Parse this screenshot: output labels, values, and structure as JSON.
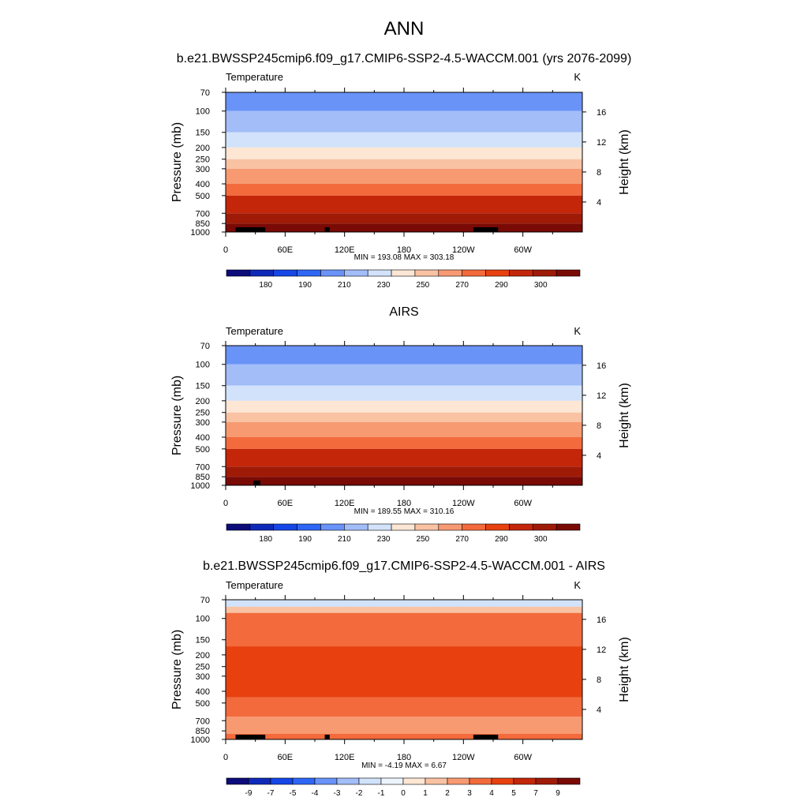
{
  "title": "ANN",
  "chart_data": [
    {
      "type": "heatmap",
      "title": "b.e21.BWSSP245cmip6.f09_g17.CMIP6-SSP2-4.5-WACCM.001 (yrs 2076-2099)",
      "variable": "Temperature",
      "units": "K",
      "ylabel": "Pressure (mb)",
      "y2label": "Height (km)",
      "xlabel": "",
      "pressure_ticks": [
        "70",
        "100",
        "150",
        "200",
        "250",
        "300",
        "400",
        "500",
        "700",
        "850",
        "1000"
      ],
      "height_ticks": [
        "16",
        "12",
        "8",
        "4"
      ],
      "lon_ticks": [
        "0",
        "60E",
        "120E",
        "180",
        "120W",
        "60W"
      ],
      "minmax": "MIN = 193.08  MAX = 303.18",
      "colorbar_labels": [
        "180",
        "190",
        "210",
        "230",
        "250",
        "270",
        "290",
        "300"
      ],
      "colorbar_colors": [
        "#0c0c7a",
        "#0f2ab8",
        "#1546e6",
        "#2e66f5",
        "#6a93f7",
        "#a2bdf8",
        "#d1e2fa",
        "#fde6d3",
        "#f9c2a3",
        "#f79a72",
        "#f36a3c",
        "#e8410f",
        "#c4260a",
        "#a01b07",
        "#7a0a05"
      ],
      "field": [
        {
          "p_top": "70",
          "p_bottom": "100",
          "value": 195
        },
        {
          "p_top": "100",
          "p_bottom": "150",
          "value": 205
        },
        {
          "p_top": "150",
          "p_bottom": "200",
          "value": 215
        },
        {
          "p_top": "200",
          "p_bottom": "250",
          "value": 222
        },
        {
          "p_top": "250",
          "p_bottom": "300",
          "value": 230
        },
        {
          "p_top": "300",
          "p_bottom": "400",
          "value": 242
        },
        {
          "p_top": "400",
          "p_bottom": "500",
          "value": 255
        },
        {
          "p_top": "500",
          "p_bottom": "700",
          "value": 270
        },
        {
          "p_top": "700",
          "p_bottom": "850",
          "value": 285
        },
        {
          "p_top": "850",
          "p_bottom": "1000",
          "value": 297
        }
      ],
      "topography_lons": [
        [
          "10",
          "40"
        ],
        [
          "100",
          "105"
        ],
        [
          "250",
          "275"
        ]
      ]
    },
    {
      "type": "heatmap",
      "title": "AIRS",
      "variable": "Temperature",
      "units": "K",
      "ylabel": "Pressure (mb)",
      "y2label": "Height (km)",
      "xlabel": "",
      "pressure_ticks": [
        "70",
        "100",
        "150",
        "200",
        "250",
        "300",
        "400",
        "500",
        "700",
        "850",
        "1000"
      ],
      "height_ticks": [
        "16",
        "12",
        "8",
        "4"
      ],
      "lon_ticks": [
        "0",
        "60E",
        "120E",
        "180",
        "120W",
        "60W"
      ],
      "minmax": "MIN = 189.55  MAX = 310.16",
      "colorbar_labels": [
        "180",
        "190",
        "210",
        "230",
        "250",
        "270",
        "290",
        "300"
      ],
      "colorbar_colors": [
        "#0c0c7a",
        "#0f2ab8",
        "#1546e6",
        "#2e66f5",
        "#6a93f7",
        "#a2bdf8",
        "#d1e2fa",
        "#fde6d3",
        "#f9c2a3",
        "#f79a72",
        "#f36a3c",
        "#e8410f",
        "#c4260a",
        "#a01b07",
        "#7a0a05"
      ],
      "field": [
        {
          "p_top": "70",
          "p_bottom": "100",
          "value": 195
        },
        {
          "p_top": "100",
          "p_bottom": "150",
          "value": 205
        },
        {
          "p_top": "150",
          "p_bottom": "200",
          "value": 215
        },
        {
          "p_top": "200",
          "p_bottom": "250",
          "value": 222
        },
        {
          "p_top": "250",
          "p_bottom": "300",
          "value": 232
        },
        {
          "p_top": "300",
          "p_bottom": "400",
          "value": 244
        },
        {
          "p_top": "400",
          "p_bottom": "500",
          "value": 257
        },
        {
          "p_top": "500",
          "p_bottom": "700",
          "value": 272
        },
        {
          "p_top": "700",
          "p_bottom": "850",
          "value": 287
        },
        {
          "p_top": "850",
          "p_bottom": "1000",
          "value": 299
        }
      ],
      "topography_lons": [
        [
          "28",
          "35"
        ]
      ]
    },
    {
      "type": "heatmap",
      "title": "b.e21.BWSSP245cmip6.f09_g17.CMIP6-SSP2-4.5-WACCM.001 - AIRS",
      "variable": "Temperature",
      "units": "K",
      "ylabel": "Pressure (mb)",
      "y2label": "Height (km)",
      "xlabel": "",
      "pressure_ticks": [
        "70",
        "100",
        "150",
        "200",
        "250",
        "300",
        "400",
        "500",
        "700",
        "850",
        "1000"
      ],
      "height_ticks": [
        "16",
        "12",
        "8",
        "4"
      ],
      "lon_ticks": [
        "0",
        "60E",
        "120E",
        "180",
        "120W",
        "60W"
      ],
      "minmax": "MIN =  -4.19  MAX =   6.67",
      "colorbar_labels": [
        "-9",
        "-7",
        "-5",
        "-4",
        "-3",
        "-2",
        "-1",
        "0",
        "1",
        "2",
        "3",
        "4",
        "5",
        "7",
        "9"
      ],
      "colorbar_colors": [
        "#0c0c7a",
        "#0f2ab8",
        "#1546e6",
        "#2e66f5",
        "#6a93f7",
        "#a2bdf8",
        "#d1e2fa",
        "#eef4fd",
        "#fde6d3",
        "#f9c2a3",
        "#f79a72",
        "#f36a3c",
        "#e8410f",
        "#c4260a",
        "#a01b07",
        "#7a0a05"
      ],
      "field": [
        {
          "p_top": "70",
          "p_bottom": "80",
          "value": -1.5
        },
        {
          "p_top": "80",
          "p_bottom": "90",
          "value": 1.5
        },
        {
          "p_top": "90",
          "p_bottom": "170",
          "value": 3.5
        },
        {
          "p_top": "170",
          "p_bottom": "450",
          "value": 4.5
        },
        {
          "p_top": "450",
          "p_bottom": "650",
          "value": 3.5
        },
        {
          "p_top": "650",
          "p_bottom": "900",
          "value": 2.5
        },
        {
          "p_top": "900",
          "p_bottom": "1000",
          "value": 3.5
        }
      ],
      "topography_lons": [
        [
          "10",
          "40"
        ],
        [
          "100",
          "105"
        ],
        [
          "250",
          "275"
        ]
      ]
    }
  ]
}
